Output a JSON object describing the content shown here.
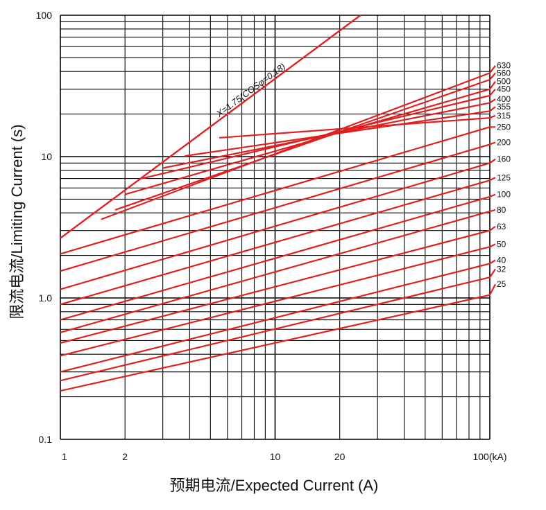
{
  "chart_data": {
    "type": "line",
    "xlabel": "预期电流/Expected Current (A)",
    "ylabel": "限流电流/Limiting Current (s)",
    "x_scale": "log",
    "y_scale": "log",
    "xlim": [
      1,
      100
    ],
    "ylim": [
      0.1,
      100
    ],
    "grid": true,
    "x_ticks": [
      {
        "value": 1,
        "label": "1"
      },
      {
        "value": 2,
        "label": "2"
      },
      {
        "value": 10,
        "label": "10"
      },
      {
        "value": 20,
        "label": "20"
      },
      {
        "value": 100,
        "label": "100(kA)"
      }
    ],
    "y_ticks": [
      {
        "value": 0.1,
        "label": "0.1"
      },
      {
        "value": 1,
        "label": "1.0"
      },
      {
        "value": 10,
        "label": "10"
      },
      {
        "value": 100,
        "label": "100"
      }
    ],
    "envelope": {
      "label": "X=1.75(COSφ=0.18)",
      "x": [
        1,
        25
      ],
      "y": [
        2.65,
        100
      ]
    },
    "series": [
      {
        "name": "630",
        "x": [
          1.55,
          100
        ],
        "y": [
          3.6,
          39
        ],
        "label_y": 44
      },
      {
        "name": "560",
        "x": [
          1.8,
          100
        ],
        "y": [
          4.2,
          35
        ],
        "label_y": 39
      },
      {
        "name": "500",
        "x": [
          2.0,
          100
        ],
        "y": [
          5.4,
          30
        ],
        "label_y": 34
      },
      {
        "name": "450",
        "x": [
          2.4,
          100
        ],
        "y": [
          7.0,
          27
        ],
        "label_y": 30
      },
      {
        "name": "400",
        "x": [
          3.0,
          100
        ],
        "y": [
          8.3,
          24
        ],
        "label_y": 25.5
      },
      {
        "name": "355",
        "x": [
          3.8,
          100
        ],
        "y": [
          10.1,
          21
        ],
        "label_y": 22.5
      },
      {
        "name": "315",
        "x": [
          5.5,
          100
        ],
        "y": [
          13.6,
          18.8
        ],
        "label_y": 19.5
      },
      {
        "name": "250",
        "x": [
          1,
          100
        ],
        "y": [
          2.05,
          16.2
        ],
        "label_y": 16.2
      },
      {
        "name": "200",
        "x": [
          1,
          100
        ],
        "y": [
          1.55,
          12.2
        ],
        "label_y": 12.6
      },
      {
        "name": "160",
        "x": [
          1,
          100
        ],
        "y": [
          1.15,
          9.0
        ],
        "label_y": 9.6
      },
      {
        "name": "125",
        "x": [
          1,
          100
        ],
        "y": [
          0.9,
          6.8
        ],
        "label_y": 7.1
      },
      {
        "name": "100",
        "x": [
          1,
          100
        ],
        "y": [
          0.7,
          5.2
        ],
        "label_y": 5.4
      },
      {
        "name": "80",
        "x": [
          1,
          100
        ],
        "y": [
          0.57,
          4.1
        ],
        "label_y": 4.2
      },
      {
        "name": "63",
        "x": [
          1,
          100
        ],
        "y": [
          0.48,
          3.0
        ],
        "label_y": 3.2
      },
      {
        "name": "50",
        "x": [
          1,
          100
        ],
        "y": [
          0.39,
          2.3
        ],
        "label_y": 2.4
      },
      {
        "name": "40",
        "x": [
          1,
          100
        ],
        "y": [
          0.3,
          1.75
        ],
        "label_y": 1.85
      },
      {
        "name": "32",
        "x": [
          1,
          100
        ],
        "y": [
          0.26,
          1.4
        ],
        "label_y": 1.6
      },
      {
        "name": "25",
        "x": [
          1,
          100
        ],
        "y": [
          0.22,
          1.05
        ],
        "label_y": 1.25
      }
    ],
    "colors": {
      "curve": "#e02020",
      "grid": "#000000",
      "text": "#111111"
    }
  }
}
